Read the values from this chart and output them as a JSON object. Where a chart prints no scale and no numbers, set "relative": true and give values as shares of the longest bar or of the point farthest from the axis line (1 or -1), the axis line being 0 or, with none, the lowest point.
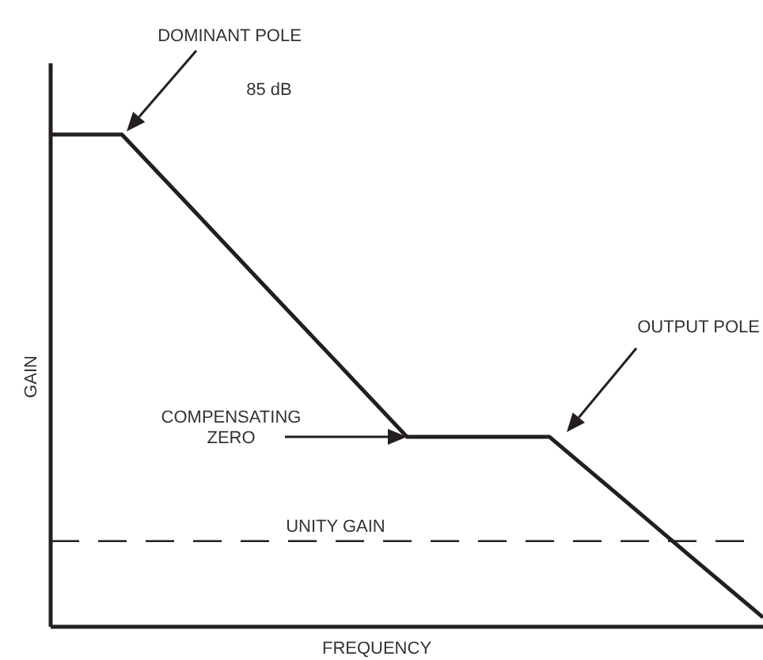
{
  "chart_data": {
    "type": "line",
    "relative": true,
    "xlabel": "FREQUENCY",
    "ylabel": "GAIN",
    "categories": [
      null,
      null,
      null,
      null,
      null,
      null,
      null,
      null,
      null,
      null,
      null
    ],
    "series": [
      {
        "color": "#231f20",
        "values": [
          1,
          1,
          0.847,
          0.693,
          0.54,
          0.386,
          0.386,
          0.386,
          0.264,
          0.141,
          0.019
        ]
      }
    ],
    "ref_lines": [
      {
        "axis": "y",
        "value": 0.174,
        "label": "UNITY GAIN",
        "color": "#231f20",
        "line_style": "dashed"
      }
    ],
    "annotations": [
      "DOMINANT POLE",
      "85 dB",
      "OUTPUT POLE",
      "COMPENSATING\nZERO"
    ],
    "grid": false,
    "marker": "none",
    "line_style": "solid"
  }
}
